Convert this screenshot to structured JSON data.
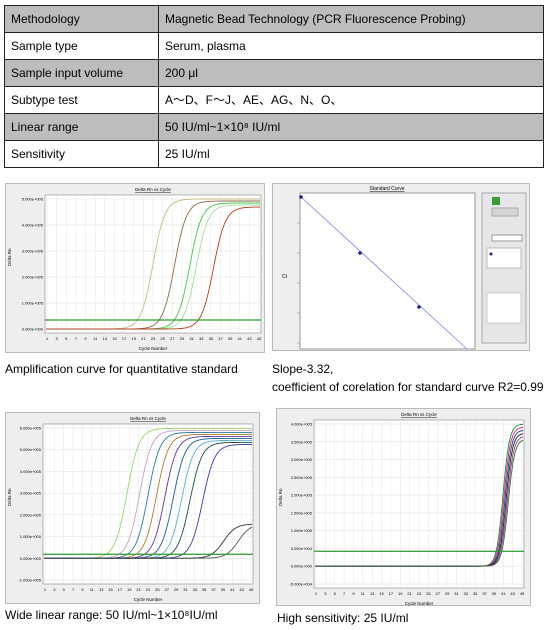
{
  "table": {
    "rows": [
      [
        "Methodology",
        "Magnetic Bead Technology (PCR Fluorescence Probing)"
      ],
      [
        "Sample type",
        "Serum, plasma"
      ],
      [
        "Sample input volume",
        "200 μl"
      ],
      [
        "Subtype test",
        "A～D、F～J、AE、AG、N、O、"
      ],
      [
        "Linear range",
        "50 IU/ml~1×10⁸ IU/ml"
      ],
      [
        "Sensitivity",
        "25 IU/ml"
      ]
    ]
  },
  "figures": [
    {
      "title": "Delta Rn vs Cycle",
      "x_label": "Cycle Number",
      "y_label": "Delta Rn",
      "yticks": [
        "5.000e+005",
        "4.000e+005",
        "3.000e+005",
        "2.000e+005",
        "1.000e+005",
        "0.000e+000"
      ],
      "xticks": [
        "1",
        "3",
        "5",
        "7",
        "9",
        "11",
        "13",
        "15",
        "17",
        "19",
        "21",
        "23",
        "25",
        "27",
        "29",
        "31",
        "33",
        "35",
        "37",
        "39",
        "41",
        "43",
        "45"
      ],
      "caption": [
        "Amplification curve for quantitative standard"
      ]
    },
    {
      "title": "Standard Curve",
      "y_label": "Ct",
      "caption": [
        "Slope-3.32,",
        "coefficient of corelation for standard curve R2=0.99"
      ]
    },
    {
      "title": "Delta Rn vs Cycle",
      "x_label": "Cycle Number",
      "y_label": "Delta Rn",
      "yticks": [
        "6.000e+005",
        "5.000e+005",
        "4.000e+005",
        "3.000e+005",
        "2.000e+005",
        "1.000e+005",
        "0.000e+000",
        "-1.000e+005"
      ],
      "xticks": [
        "1",
        "3",
        "5",
        "7",
        "9",
        "11",
        "13",
        "15",
        "17",
        "19",
        "21",
        "23",
        "25",
        "27",
        "29",
        "31",
        "33",
        "35",
        "37",
        "39",
        "41",
        "43",
        "45"
      ],
      "caption": [
        "Wide linear range: 50 IU/ml~1×10⁸IU/ml"
      ]
    },
    {
      "title": "Delta Rn vs Cycle",
      "x_label": "Cycle Number",
      "y_label": "Delta Rn",
      "yticks": [
        "4.000e+005",
        "3.500e+005",
        "3.000e+005",
        "2.500e+005",
        "2.000e+005",
        "1.500e+005",
        "1.000e+005",
        "5.000e+004",
        "0.000e+000",
        "-5.000e+004"
      ],
      "xticks": [
        "1",
        "3",
        "5",
        "7",
        "9",
        "11",
        "13",
        "15",
        "17",
        "19",
        "21",
        "23",
        "25",
        "27",
        "29",
        "31",
        "33",
        "35",
        "37",
        "39",
        "41",
        "43",
        "45"
      ],
      "caption": [
        "High sensitivity: 25 IU/ml"
      ]
    }
  ]
}
